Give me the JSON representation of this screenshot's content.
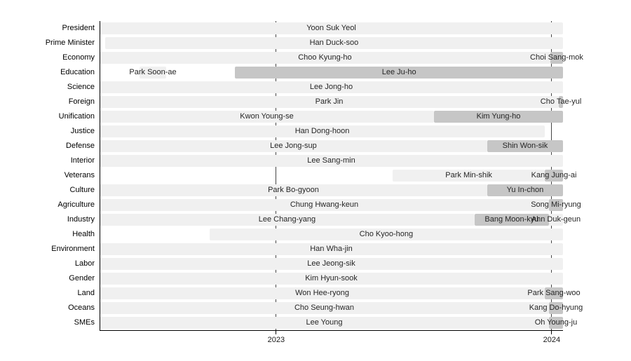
{
  "chart_data": {
    "type": "gantt",
    "title": "",
    "xlabel": "",
    "ylabel": "",
    "legend": "none",
    "x_axis": {
      "range": [
        2022.359,
        2024.041
      ],
      "ticks": [
        {
          "value": 2023,
          "label": "2023"
        },
        {
          "value": 2024,
          "label": "2024"
        }
      ],
      "gridlines": "solid vertical lines at year ticks, drawn behind bars"
    },
    "colors": {
      "bar_light": "#f0f0f0",
      "bar_dark": "#c6c6c6",
      "grid_line": "#454545",
      "axis": "#000000",
      "bar_label": "#262626",
      "row_label": "#000000",
      "background": "#ffffff"
    },
    "rows": [
      {
        "label": "President",
        "bars": [
          {
            "name": "Yoon Suk Yeol",
            "start": 2022.359,
            "end": 2024.041,
            "shade": "light"
          }
        ]
      },
      {
        "label": "Prime Minister",
        "bars": [
          {
            "name": "Han Duck-soo",
            "start": 2022.379,
            "end": 2024.041,
            "shade": "light"
          }
        ]
      },
      {
        "label": "Economy",
        "bars": [
          {
            "name": "Choo Kyung-ho",
            "start": 2022.359,
            "end": 2023.995,
            "shade": "light"
          },
          {
            "name": "Choi Sang-mok",
            "start": 2023.995,
            "end": 2024.041,
            "shade": "dark"
          }
        ]
      },
      {
        "label": "Education",
        "bars": [
          {
            "name": "Park Soon-ae",
            "start": 2022.504,
            "end": 2022.601,
            "shade": "light"
          },
          {
            "name": "Lee Ju-ho",
            "start": 2022.851,
            "end": 2024.041,
            "shade": "dark"
          }
        ]
      },
      {
        "label": "Science",
        "bars": [
          {
            "name": "Lee Jong-ho",
            "start": 2022.359,
            "end": 2024.041,
            "shade": "light"
          }
        ]
      },
      {
        "label": "Foreign",
        "bars": [
          {
            "name": "Park Jin",
            "start": 2022.359,
            "end": 2024.026,
            "shade": "light"
          },
          {
            "name": "Cho Tae-yul",
            "start": 2024.026,
            "end": 2024.041,
            "shade": "dark"
          }
        ]
      },
      {
        "label": "Unification",
        "bars": [
          {
            "name": "Kwon Young-se",
            "start": 2022.359,
            "end": 2023.573,
            "shade": "light"
          },
          {
            "name": "Kim Yung-ho",
            "start": 2023.573,
            "end": 2024.041,
            "shade": "dark"
          }
        ]
      },
      {
        "label": "Justice",
        "bars": [
          {
            "name": "Han Dong-hoon",
            "start": 2022.359,
            "end": 2023.975,
            "shade": "light"
          }
        ]
      },
      {
        "label": "Defense",
        "bars": [
          {
            "name": "Lee Jong-sup",
            "start": 2022.359,
            "end": 2023.766,
            "shade": "light"
          },
          {
            "name": "Shin Won-sik",
            "start": 2023.766,
            "end": 2024.041,
            "shade": "dark"
          }
        ]
      },
      {
        "label": "Interior",
        "bars": [
          {
            "name": "Lee Sang-min",
            "start": 2022.359,
            "end": 2024.041,
            "shade": "light"
          }
        ]
      },
      {
        "label": "Veterans",
        "bars": [
          {
            "name": "Park Min-shik",
            "start": 2023.423,
            "end": 2023.975,
            "shade": "light"
          },
          {
            "name": "Kang Jung-ai",
            "start": 2023.975,
            "end": 2024.041,
            "shade": "dark"
          }
        ]
      },
      {
        "label": "Culture",
        "bars": [
          {
            "name": "Park Bo-gyoon",
            "start": 2022.359,
            "end": 2023.766,
            "shade": "light"
          },
          {
            "name": "Yu In-chon",
            "start": 2023.766,
            "end": 2024.041,
            "shade": "dark"
          }
        ]
      },
      {
        "label": "Agriculture",
        "bars": [
          {
            "name": "Chung Hwang-keun",
            "start": 2022.359,
            "end": 2023.99,
            "shade": "light"
          },
          {
            "name": "Song Mi-ryung",
            "start": 2023.99,
            "end": 2024.041,
            "shade": "dark"
          }
        ]
      },
      {
        "label": "Industry",
        "bars": [
          {
            "name": "Lee Chang-yang",
            "start": 2022.359,
            "end": 2023.72,
            "shade": "light"
          },
          {
            "name": "Bang Moon-kyu",
            "start": 2023.72,
            "end": 2023.99,
            "shade": "dark"
          },
          {
            "name": "Ahn Duk-geun",
            "start": 2023.99,
            "end": 2024.041,
            "shade": "light"
          }
        ]
      },
      {
        "label": "Health",
        "bars": [
          {
            "name": "Cho Kyoo-hong",
            "start": 2022.758,
            "end": 2024.041,
            "shade": "light"
          }
        ]
      },
      {
        "label": "Environment",
        "bars": [
          {
            "name": "Han Wha-jin",
            "start": 2022.359,
            "end": 2024.041,
            "shade": "light"
          }
        ]
      },
      {
        "label": "Labor",
        "bars": [
          {
            "name": "Lee Jeong-sik",
            "start": 2022.359,
            "end": 2024.041,
            "shade": "light"
          }
        ]
      },
      {
        "label": "Gender",
        "bars": [
          {
            "name": "Kim Hyun-sook",
            "start": 2022.359,
            "end": 2024.041,
            "shade": "light"
          }
        ]
      },
      {
        "label": "Land",
        "bars": [
          {
            "name": "Won Hee-ryong",
            "start": 2022.359,
            "end": 2023.975,
            "shade": "light"
          },
          {
            "name": "Park Sang-woo",
            "start": 2023.975,
            "end": 2024.041,
            "shade": "dark"
          }
        ]
      },
      {
        "label": "Oceans",
        "bars": [
          {
            "name": "Cho Seung-hwan",
            "start": 2022.359,
            "end": 2023.99,
            "shade": "light"
          },
          {
            "name": "Kang Do-hyung",
            "start": 2023.99,
            "end": 2024.041,
            "shade": "dark"
          }
        ]
      },
      {
        "label": "SMEs",
        "bars": [
          {
            "name": "Lee Young",
            "start": 2022.359,
            "end": 2023.99,
            "shade": "light"
          },
          {
            "name": "Oh Young-ju",
            "start": 2023.99,
            "end": 2024.041,
            "shade": "dark"
          }
        ]
      }
    ]
  }
}
